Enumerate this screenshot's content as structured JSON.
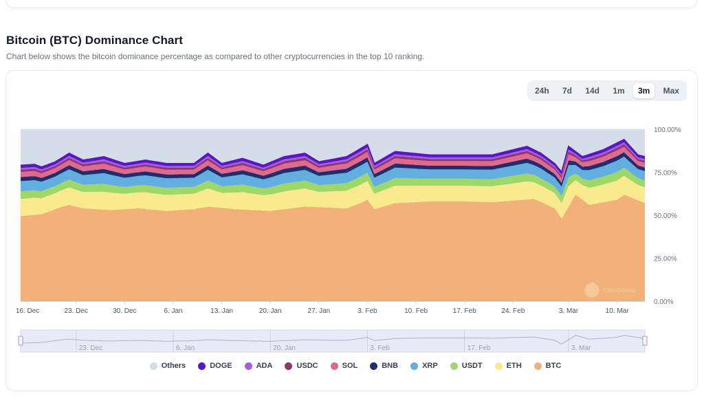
{
  "page": {
    "title": "Bitcoin (BTC) Dominance Chart",
    "subtitle": "Chart below shows the bitcoin dominance percentage as compared to other cryptocurrencies in the top 10 ranking.",
    "watermark": "CoinGecko"
  },
  "range_buttons": [
    {
      "label": "24h",
      "active": false
    },
    {
      "label": "7d",
      "active": false
    },
    {
      "label": "14d",
      "active": false
    },
    {
      "label": "1m",
      "active": false
    },
    {
      "label": "3m",
      "active": true
    },
    {
      "label": "Max",
      "active": false
    }
  ],
  "chart_data": {
    "type": "area",
    "stacked": true,
    "title": "",
    "xlabel": "",
    "ylabel": "",
    "ylim": [
      0,
      100
    ],
    "yticks": [
      "0.00%",
      "25.00%",
      "50.00%",
      "75.00%",
      "100.00%"
    ],
    "x_start": "2023-12-15",
    "x_end": "2024-03-14",
    "xticks": [
      {
        "date": "2023-12-16",
        "label": "16. Dec"
      },
      {
        "date": "2023-12-23",
        "label": "23. Dec"
      },
      {
        "date": "2023-12-30",
        "label": "30. Dec"
      },
      {
        "date": "2024-01-06",
        "label": "6. Jan"
      },
      {
        "date": "2024-01-13",
        "label": "13. Jan"
      },
      {
        "date": "2024-01-20",
        "label": "20. Jan"
      },
      {
        "date": "2024-01-27",
        "label": "27. Jan"
      },
      {
        "date": "2024-02-03",
        "label": "3. Feb"
      },
      {
        "date": "2024-02-10",
        "label": "10. Feb"
      },
      {
        "date": "2024-02-17",
        "label": "17. Feb"
      },
      {
        "date": "2024-02-24",
        "label": "24. Feb"
      },
      {
        "date": "2024-03-03",
        "label": "3. Mar"
      },
      {
        "date": "2024-03-10",
        "label": "10. Mar"
      }
    ],
    "navigator_ticks": [
      {
        "date": "2023-12-23",
        "label": "23. Dec"
      },
      {
        "date": "2024-01-06",
        "label": "6. Jan"
      },
      {
        "date": "2024-01-20",
        "label": "20. Jan"
      },
      {
        "date": "2024-02-03",
        "label": "3. Feb"
      },
      {
        "date": "2024-02-17",
        "label": "17. Feb"
      },
      {
        "date": "2024-03-03",
        "label": "3. Mar"
      }
    ],
    "grid": true,
    "legend_position": "bottom-center",
    "btc_points": [
      {
        "date": "2023-12-15",
        "value": 49.5
      },
      {
        "date": "2023-12-18",
        "value": 50.5
      },
      {
        "date": "2023-12-21",
        "value": 55
      },
      {
        "date": "2023-12-22",
        "value": 56
      },
      {
        "date": "2023-12-24",
        "value": 54
      },
      {
        "date": "2023-12-28",
        "value": 53
      },
      {
        "date": "2024-01-01",
        "value": 54
      },
      {
        "date": "2024-01-05",
        "value": 52.5
      },
      {
        "date": "2024-01-09",
        "value": 53.5
      },
      {
        "date": "2024-01-11",
        "value": 55
      },
      {
        "date": "2024-01-15",
        "value": 53.5
      },
      {
        "date": "2024-01-20",
        "value": 52.5
      },
      {
        "date": "2024-01-25",
        "value": 55
      },
      {
        "date": "2024-01-31",
        "value": 54
      },
      {
        "date": "2024-02-02",
        "value": 57
      },
      {
        "date": "2024-02-03",
        "value": 59
      },
      {
        "date": "2024-02-04",
        "value": 53.5
      },
      {
        "date": "2024-02-07",
        "value": 57
      },
      {
        "date": "2024-02-12",
        "value": 58
      },
      {
        "date": "2024-02-17",
        "value": 58
      },
      {
        "date": "2024-02-21",
        "value": 57.5
      },
      {
        "date": "2024-02-24",
        "value": 58.5
      },
      {
        "date": "2024-02-27",
        "value": 59.5
      },
      {
        "date": "2024-03-01",
        "value": 54
      },
      {
        "date": "2024-03-02",
        "value": 48
      },
      {
        "date": "2024-03-04",
        "value": 62
      },
      {
        "date": "2024-03-06",
        "value": 56
      },
      {
        "date": "2024-03-10",
        "value": 59
      },
      {
        "date": "2024-03-11",
        "value": 62
      },
      {
        "date": "2024-03-14",
        "value": 57
      }
    ],
    "top_points": [
      {
        "date": "2023-12-15",
        "value": 79
      },
      {
        "date": "2023-12-17",
        "value": 79.5
      },
      {
        "date": "2023-12-18",
        "value": 78
      },
      {
        "date": "2023-12-20",
        "value": 81
      },
      {
        "date": "2023-12-22",
        "value": 86
      },
      {
        "date": "2023-12-24",
        "value": 82
      },
      {
        "date": "2023-12-27",
        "value": 84
      },
      {
        "date": "2023-12-30",
        "value": 80
      },
      {
        "date": "2024-01-02",
        "value": 82
      },
      {
        "date": "2024-01-05",
        "value": 80
      },
      {
        "date": "2024-01-09",
        "value": 80
      },
      {
        "date": "2024-01-11",
        "value": 86
      },
      {
        "date": "2024-01-13",
        "value": 80
      },
      {
        "date": "2024-01-16",
        "value": 83
      },
      {
        "date": "2024-01-19",
        "value": 79
      },
      {
        "date": "2024-01-22",
        "value": 84
      },
      {
        "date": "2024-01-25",
        "value": 86
      },
      {
        "date": "2024-01-27",
        "value": 81
      },
      {
        "date": "2024-01-31",
        "value": 84
      },
      {
        "date": "2024-02-03",
        "value": 91
      },
      {
        "date": "2024-02-04",
        "value": 80
      },
      {
        "date": "2024-02-07",
        "value": 87
      },
      {
        "date": "2024-02-12",
        "value": 85
      },
      {
        "date": "2024-02-17",
        "value": 85
      },
      {
        "date": "2024-02-21",
        "value": 85
      },
      {
        "date": "2024-02-24",
        "value": 88
      },
      {
        "date": "2024-02-26",
        "value": 90
      },
      {
        "date": "2024-02-28",
        "value": 86
      },
      {
        "date": "2024-03-01",
        "value": 80
      },
      {
        "date": "2024-03-02",
        "value": 75
      },
      {
        "date": "2024-03-03",
        "value": 90
      },
      {
        "date": "2024-03-05",
        "value": 84
      },
      {
        "date": "2024-03-08",
        "value": 88
      },
      {
        "date": "2024-03-11",
        "value": 94
      },
      {
        "date": "2024-03-13",
        "value": 85
      },
      {
        "date": "2024-03-14",
        "value": 84
      }
    ],
    "series": [
      {
        "name": "Others",
        "color": "#d5dde8"
      },
      {
        "name": "DOGE",
        "color": "#5b16c4"
      },
      {
        "name": "ADA",
        "color": "#a15ee0"
      },
      {
        "name": "USDC",
        "color": "#8e3670"
      },
      {
        "name": "SOL",
        "color": "#e06a8e"
      },
      {
        "name": "BNB",
        "color": "#1f2f6e"
      },
      {
        "name": "XRP",
        "color": "#62aee0"
      },
      {
        "name": "USDT",
        "color": "#9fd86a"
      },
      {
        "name": "ETH",
        "color": "#f9eb8d"
      },
      {
        "name": "BTC",
        "color": "#f2b179"
      }
    ]
  }
}
